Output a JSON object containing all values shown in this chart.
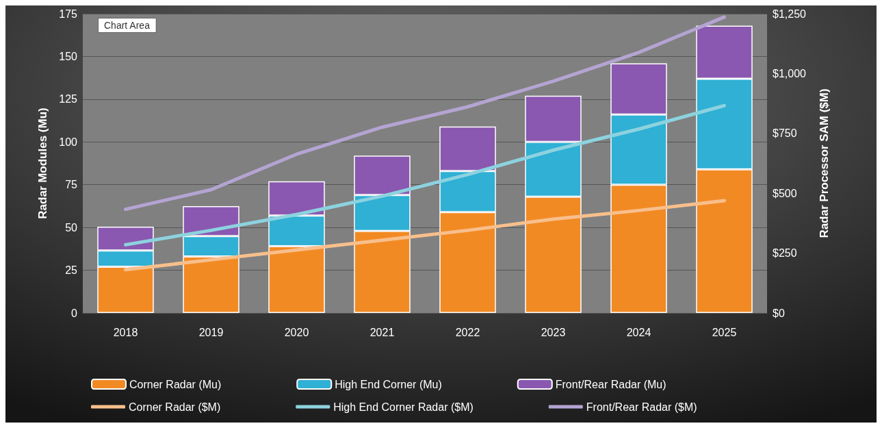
{
  "chart_data": {
    "type": "bar",
    "stacked": true,
    "categories": [
      "2018",
      "2019",
      "2020",
      "2021",
      "2022",
      "2023",
      "2024",
      "2025"
    ],
    "ylabel": "Radar Modules (Mu)",
    "y2label": "Radar Processor SAM ($M)",
    "ylim": [
      0,
      175
    ],
    "yticks": [
      0,
      25,
      50,
      75,
      100,
      125,
      150,
      175
    ],
    "y2lim": [
      0,
      1250
    ],
    "y2ticks": [
      {
        "value": 0,
        "label": "$0"
      },
      {
        "value": 250,
        "label": "$250"
      },
      {
        "value": 500,
        "label": "$500"
      },
      {
        "value": 750,
        "label": "$750"
      },
      {
        "value": 1000,
        "label": "$1,000"
      },
      {
        "value": 1250,
        "label": "$1,250"
      }
    ],
    "grid": "y",
    "legend": "bottom",
    "marker": "none",
    "annotations": [
      "Chart Area"
    ],
    "series": [
      {
        "name": "Corner Radar (Mu)",
        "color": "#f28a24",
        "values": [
          27,
          33,
          39,
          48,
          59,
          68,
          75,
          84
        ]
      },
      {
        "name": "High End Corner (Mu)",
        "color": "#2fb0d4",
        "values": [
          9.5,
          12,
          18,
          21,
          24,
          32,
          41,
          53
        ]
      },
      {
        "name": "Front/Rear Radar (Mu)",
        "color": "#8a58b0",
        "values": [
          14,
          17.5,
          20,
          23,
          26,
          27,
          30,
          31
        ]
      },
      {
        "name": "Corner Radar ($M)",
        "type": "line",
        "axis": "y2",
        "color": "#f8bf8c",
        "values": [
          181,
          222,
          263,
          304,
          345,
          392,
          428,
          469
        ]
      },
      {
        "name": "High End Corner Radar ($M)",
        "type": "line",
        "axis": "y2",
        "color": "#8dd2df",
        "values": [
          285,
          345,
          411,
          488,
          578,
          680,
          768,
          866
        ]
      },
      {
        "name": "Front/Rear Radar ($M)",
        "type": "line",
        "axis": "y2",
        "color": "#b4a4d2",
        "values": [
          433,
          515,
          663,
          776,
          861,
          968,
          1088,
          1236
        ]
      }
    ]
  }
}
